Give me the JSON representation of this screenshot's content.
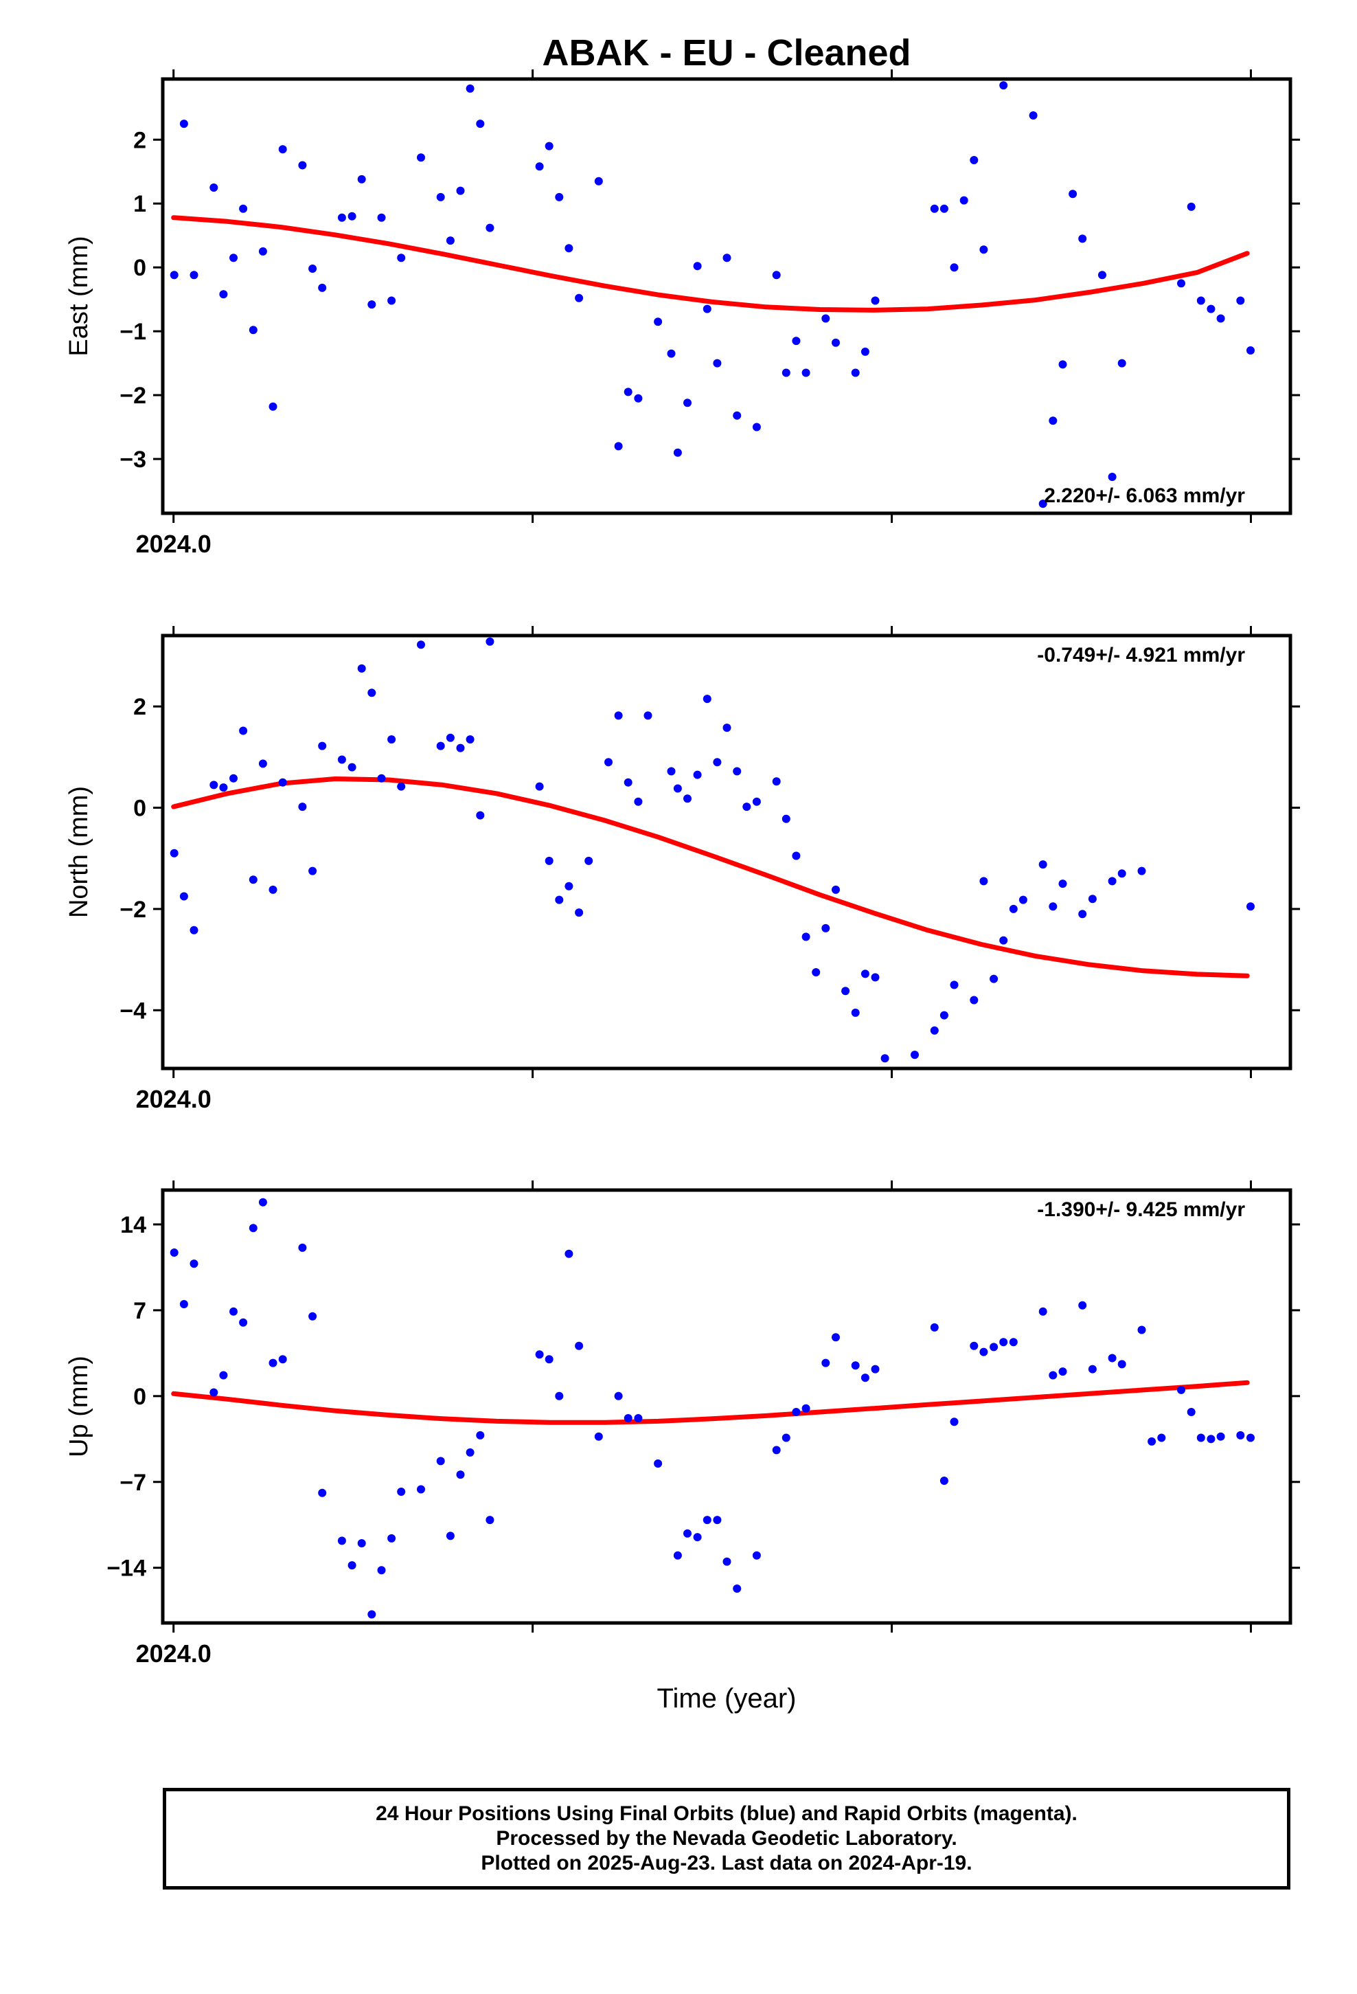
{
  "title": "ABAK  - EU - Cleaned",
  "xlabel": "Time (year)",
  "footer": {
    "line1": "24 Hour Positions Using Final Orbits (blue) and Rapid Orbits (magenta).",
    "line2": "Processed by the Nevada Geodetic Laboratory.",
    "line3": "Plotted on 2025-Aug-23. Last data on 2024-Apr-19."
  },
  "colors": {
    "points": "#0000ff",
    "fit": "#ff0000",
    "frame": "#000000"
  },
  "chart_data": [
    {
      "type": "scatter",
      "id": "east",
      "ylabel": "East (mm)",
      "ylim": [
        -3.85,
        2.95
      ],
      "yticks": [
        2,
        1,
        0,
        -1,
        -2,
        -3
      ],
      "ytick_labels": [
        "2",
        "1",
        "0",
        "−1",
        "−2",
        "−3"
      ],
      "xlim": [
        2023.997,
        2024.311
      ],
      "xticks": [
        2024.0,
        2024.1,
        2024.2,
        2024.3
      ],
      "xtick_labels": [
        "2024.0",
        "",
        "",
        ""
      ],
      "rate_label": "2.220+/- 6.063 mm/yr",
      "rate_label_position": "bottom-right",
      "series": [
        {
          "kind": "points",
          "x": [
            2024.0002,
            2024.0029,
            2024.0057,
            2024.0112,
            2024.0139,
            2024.0167,
            2024.0194,
            2024.0222,
            2024.0249,
            2024.0277,
            2024.0304,
            2024.0359,
            2024.0387,
            2024.0414,
            2024.0469,
            2024.0497,
            2024.0524,
            2024.0552,
            2024.0579,
            2024.0607,
            2024.0634,
            2024.0689,
            2024.0744,
            2024.0771,
            2024.0799,
            2024.0826,
            2024.0854,
            2024.0881,
            2024.1019,
            2024.1046,
            2024.1074,
            2024.1101,
            2024.1129,
            2024.1184,
            2024.1239,
            2024.1266,
            2024.1294,
            2024.1349,
            2024.1386,
            2024.1404,
            2024.1431,
            2024.1459,
            2024.1486,
            2024.1514,
            2024.1541,
            2024.1569,
            2024.1624,
            2024.1679,
            2024.1706,
            2024.1734,
            2024.1761,
            2024.1816,
            2024.1844,
            2024.1899,
            2024.1926,
            2024.1954,
            2024.2119,
            2024.2146,
            2024.2174,
            2024.2201,
            2024.2229,
            2024.2256,
            2024.2311,
            2024.2394,
            2024.2421,
            2024.2449,
            2024.2476,
            2024.2504,
            2024.2531,
            2024.2586,
            2024.2614,
            2024.2641,
            2024.2806,
            2024.2834,
            2024.2861,
            2024.2889,
            2024.2916,
            2024.2971,
            2024.2999
          ],
          "y": [
            -0.12,
            2.25,
            -0.12,
            1.25,
            -0.42,
            0.15,
            0.92,
            -0.98,
            0.25,
            -2.18,
            1.85,
            1.6,
            -0.02,
            -0.32,
            0.78,
            0.8,
            1.38,
            -0.58,
            0.78,
            -0.52,
            0.15,
            1.72,
            1.1,
            0.42,
            1.2,
            2.8,
            2.25,
            0.62,
            1.58,
            1.9,
            1.1,
            0.3,
            -0.48,
            1.35,
            -2.8,
            -1.95,
            -2.05,
            -0.85,
            -1.35,
            -2.9,
            -2.12,
            0.02,
            -0.65,
            -1.5,
            0.15,
            -2.32,
            -2.5,
            -0.12,
            -1.65,
            -1.15,
            -1.65,
            -0.8,
            -1.18,
            -1.65,
            -1.32,
            -0.52,
            0.92,
            0.92,
            0.0,
            1.05,
            1.68,
            0.28,
            2.85,
            2.38,
            -3.7,
            -2.4,
            -1.52,
            1.15,
            0.45,
            -0.12,
            -3.28,
            -1.5,
            -0.25,
            0.95,
            -0.52,
            -0.65,
            -0.8,
            -0.52,
            -1.3
          ]
        },
        {
          "kind": "fit-line",
          "x": [
            2024.0,
            2024.015,
            2024.03,
            2024.045,
            2024.06,
            2024.075,
            2024.09,
            2024.105,
            2024.12,
            2024.135,
            2024.15,
            2024.165,
            2024.18,
            2024.195,
            2024.21,
            2024.225,
            2024.24,
            2024.255,
            2024.27,
            2024.285,
            2024.299
          ],
          "y": [
            0.78,
            0.72,
            0.63,
            0.51,
            0.37,
            0.21,
            0.04,
            -0.13,
            -0.29,
            -0.43,
            -0.54,
            -0.62,
            -0.66,
            -0.67,
            -0.65,
            -0.59,
            -0.51,
            -0.39,
            -0.25,
            -0.08,
            0.22
          ]
        }
      ]
    },
    {
      "type": "scatter",
      "id": "north",
      "ylabel": "North (mm)",
      "ylim": [
        -5.15,
        3.4
      ],
      "yticks": [
        2,
        0,
        -2,
        -4
      ],
      "ytick_labels": [
        "2",
        "0",
        "−2",
        "−4"
      ],
      "xlim": [
        2023.997,
        2024.311
      ],
      "xticks": [
        2024.0,
        2024.1,
        2024.2,
        2024.3
      ],
      "xtick_labels": [
        "2024.0",
        "",
        "",
        ""
      ],
      "rate_label": "-0.749+/- 4.921 mm/yr",
      "rate_label_position": "top-right",
      "series": [
        {
          "kind": "points",
          "x": [
            2024.0002,
            2024.0029,
            2024.0057,
            2024.0112,
            2024.0139,
            2024.0167,
            2024.0194,
            2024.0222,
            2024.0249,
            2024.0277,
            2024.0304,
            2024.0359,
            2024.0387,
            2024.0414,
            2024.0469,
            2024.0497,
            2024.0524,
            2024.0552,
            2024.0579,
            2024.0607,
            2024.0634,
            2024.0689,
            2024.0744,
            2024.0771,
            2024.0799,
            2024.0826,
            2024.0854,
            2024.0881,
            2024.1019,
            2024.1046,
            2024.1074,
            2024.1101,
            2024.1129,
            2024.1156,
            2024.1211,
            2024.1239,
            2024.1266,
            2024.1294,
            2024.1321,
            2024.1386,
            2024.1404,
            2024.1431,
            2024.1459,
            2024.1486,
            2024.1514,
            2024.1541,
            2024.1569,
            2024.1596,
            2024.1624,
            2024.1679,
            2024.1706,
            2024.1734,
            2024.1761,
            2024.1789,
            2024.1816,
            2024.1844,
            2024.1871,
            2024.1899,
            2024.1926,
            2024.1954,
            2024.1981,
            2024.2064,
            2024.2119,
            2024.2146,
            2024.2174,
            2024.2229,
            2024.2256,
            2024.2284,
            2024.2311,
            2024.2339,
            2024.2366,
            2024.2421,
            2024.2449,
            2024.2476,
            2024.2531,
            2024.2559,
            2024.2614,
            2024.2641,
            2024.2696,
            2024.2999
          ],
          "y": [
            -0.9,
            -1.75,
            -2.42,
            0.45,
            0.4,
            0.58,
            1.52,
            -1.42,
            0.87,
            -1.62,
            0.5,
            0.02,
            -1.25,
            1.22,
            0.95,
            0.8,
            2.75,
            2.27,
            0.58,
            1.35,
            0.42,
            3.22,
            1.22,
            1.38,
            1.18,
            1.35,
            -0.15,
            3.28,
            0.42,
            -1.05,
            -1.82,
            -1.55,
            -2.07,
            -1.05,
            0.9,
            1.82,
            0.5,
            0.12,
            1.82,
            0.72,
            0.38,
            0.18,
            0.65,
            2.15,
            0.9,
            1.58,
            0.72,
            0.02,
            0.12,
            0.52,
            -0.22,
            -0.95,
            -2.55,
            -3.25,
            -2.38,
            -1.62,
            -3.62,
            -4.05,
            -3.28,
            -3.35,
            -4.95,
            -4.88,
            -4.4,
            -4.1,
            -3.5,
            -3.8,
            -1.45,
            -3.38,
            -2.62,
            -2.0,
            -1.82,
            -1.12,
            -1.95,
            -1.5,
            -2.1,
            -1.8,
            -1.45,
            -1.3,
            -1.25,
            -1.95
          ],
          "note_count": 80
        },
        {
          "kind": "fit-line",
          "x": [
            2024.0,
            2024.015,
            2024.03,
            2024.045,
            2024.06,
            2024.075,
            2024.09,
            2024.105,
            2024.12,
            2024.135,
            2024.15,
            2024.165,
            2024.18,
            2024.195,
            2024.21,
            2024.225,
            2024.24,
            2024.255,
            2024.27,
            2024.285,
            2024.299
          ],
          "y": [
            0.02,
            0.28,
            0.48,
            0.57,
            0.55,
            0.45,
            0.28,
            0.04,
            -0.25,
            -0.58,
            -0.95,
            -1.33,
            -1.72,
            -2.08,
            -2.42,
            -2.7,
            -2.93,
            -3.1,
            -3.22,
            -3.29,
            -3.32
          ]
        }
      ]
    },
    {
      "type": "scatter",
      "id": "up",
      "ylabel": "Up (mm)",
      "ylim": [
        -18.5,
        16.8
      ],
      "yticks": [
        14,
        7,
        0,
        -7,
        -14
      ],
      "ytick_labels": [
        "14",
        "7",
        "0",
        "−7",
        "−14"
      ],
      "xlim": [
        2023.997,
        2024.311
      ],
      "xticks": [
        2024.0,
        2024.1,
        2024.2,
        2024.3
      ],
      "xtick_labels": [
        "2024.0",
        "",
        "",
        ""
      ],
      "rate_label": "-1.390+/- 9.425 mm/yr",
      "rate_label_position": "top-right",
      "series": [
        {
          "kind": "points",
          "x": [
            2024.0002,
            2024.0029,
            2024.0057,
            2024.0112,
            2024.0139,
            2024.0167,
            2024.0194,
            2024.0222,
            2024.0249,
            2024.0277,
            2024.0304,
            2024.0359,
            2024.0387,
            2024.0414,
            2024.0469,
            2024.0497,
            2024.0524,
            2024.0552,
            2024.0579,
            2024.0607,
            2024.0634,
            2024.0689,
            2024.0744,
            2024.0771,
            2024.0799,
            2024.0826,
            2024.0854,
            2024.0881,
            2024.1019,
            2024.1046,
            2024.1074,
            2024.1101,
            2024.1129,
            2024.1184,
            2024.1239,
            2024.1266,
            2024.1294,
            2024.1349,
            2024.1404,
            2024.1431,
            2024.1459,
            2024.1486,
            2024.1514,
            2024.1541,
            2024.1569,
            2024.1624,
            2024.1679,
            2024.1706,
            2024.1734,
            2024.1761,
            2024.1816,
            2024.1844,
            2024.1899,
            2024.1926,
            2024.1954,
            2024.2119,
            2024.2146,
            2024.2174,
            2024.2229,
            2024.2256,
            2024.2284,
            2024.2311,
            2024.2339,
            2024.2421,
            2024.2449,
            2024.2476,
            2024.2531,
            2024.2559,
            2024.2614,
            2024.2641,
            2024.2696,
            2024.2724,
            2024.2751,
            2024.2806,
            2024.2834,
            2024.2861,
            2024.2889,
            2024.2916,
            2024.2971,
            2024.2999
          ],
          "y": [
            11.7,
            7.5,
            10.8,
            0.3,
            1.7,
            6.9,
            6.0,
            13.7,
            15.8,
            2.7,
            3.0,
            12.1,
            6.5,
            -7.9,
            -11.8,
            -13.8,
            -12.0,
            -17.8,
            -14.2,
            -11.6,
            -7.8,
            -7.6,
            -5.3,
            -11.4,
            -6.4,
            -4.6,
            -3.2,
            -10.1,
            3.4,
            3.0,
            0.0,
            11.6,
            4.1,
            -3.3,
            0.0,
            -1.8,
            -1.8,
            -5.5,
            -13.0,
            -11.2,
            -11.5,
            -10.1,
            -10.1,
            -13.5,
            -15.7,
            -13.0,
            -4.4,
            -3.4,
            -1.3,
            -1.0,
            2.7,
            4.8,
            2.5,
            1.5,
            2.2,
            5.6,
            -6.9,
            -2.1,
            4.1,
            3.6,
            4.0,
            4.4,
            4.4,
            6.9,
            1.7,
            2.0,
            7.4,
            2.2,
            3.1,
            2.6,
            5.4,
            -3.7,
            -3.4,
            0.5,
            -1.3,
            -3.4,
            -3.5,
            -3.3,
            -3.2,
            -3.4
          ],
          "note_count": 80
        },
        {
          "kind": "fit-line",
          "x": [
            2024.0,
            2024.015,
            2024.03,
            2024.045,
            2024.06,
            2024.075,
            2024.09,
            2024.105,
            2024.12,
            2024.135,
            2024.15,
            2024.165,
            2024.18,
            2024.195,
            2024.21,
            2024.225,
            2024.24,
            2024.255,
            2024.27,
            2024.285,
            2024.299
          ],
          "y": [
            0.2,
            -0.25,
            -0.75,
            -1.2,
            -1.55,
            -1.85,
            -2.05,
            -2.15,
            -2.15,
            -2.05,
            -1.85,
            -1.6,
            -1.3,
            -1.0,
            -0.7,
            -0.4,
            -0.1,
            0.2,
            0.5,
            0.8,
            1.1
          ]
        }
      ]
    }
  ]
}
